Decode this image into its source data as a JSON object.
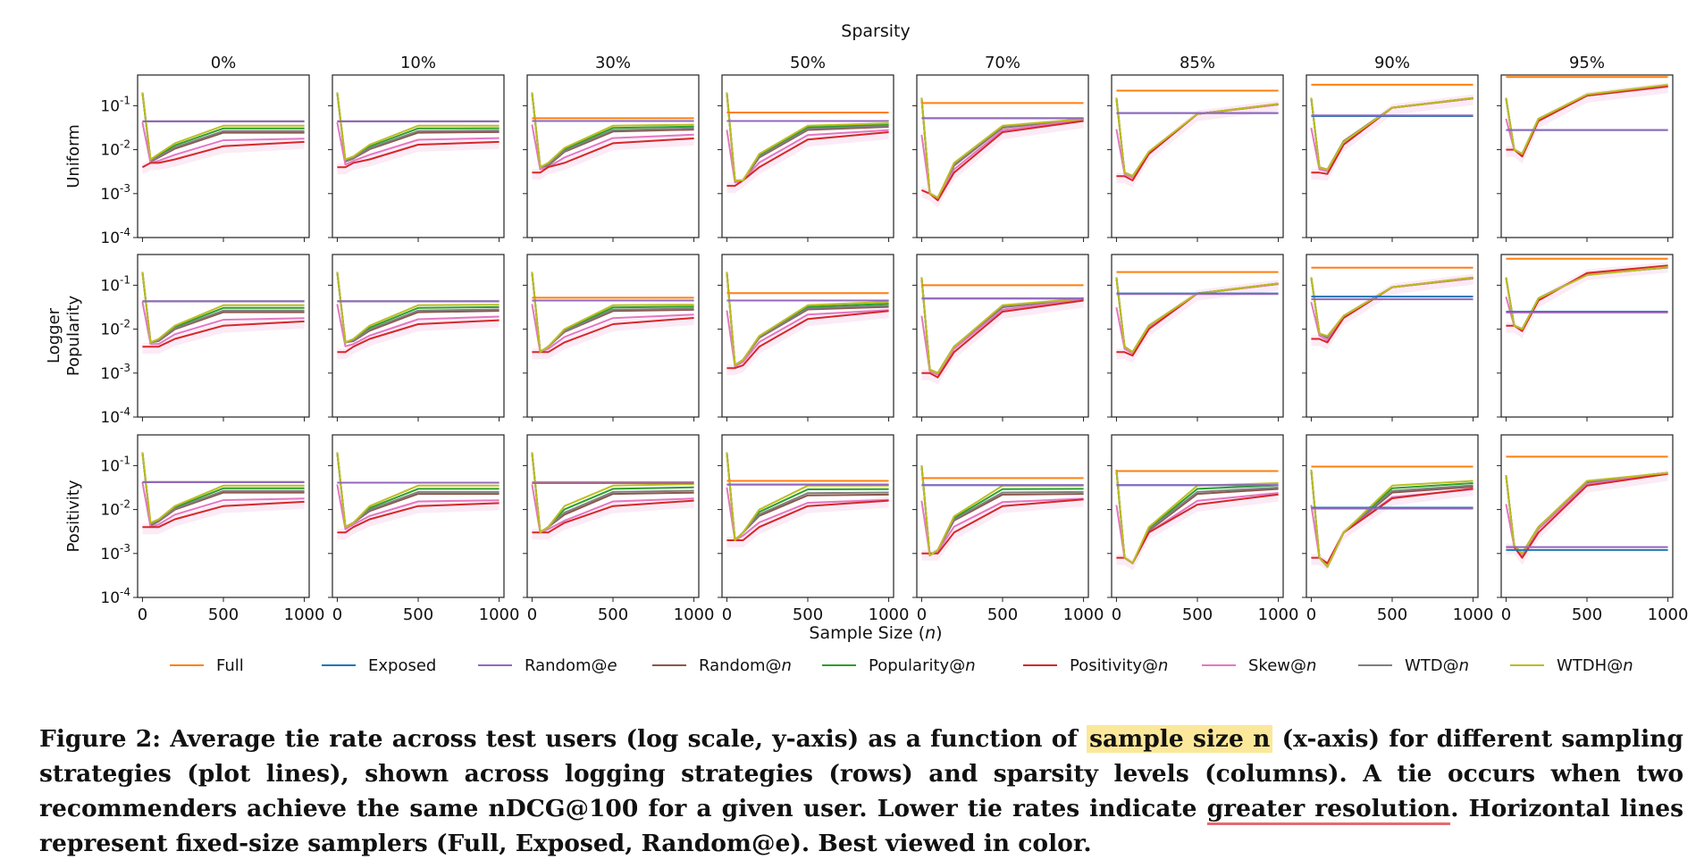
{
  "figure": {
    "suptitle": "Sparsity",
    "xlabel": "Sample Size (n)",
    "xlabel_prefix": "Sample Size (",
    "xlabel_var": "n",
    "xlabel_suffix": ")",
    "caption": {
      "label": "Figure 2:",
      "part1": "Average tie rate across test users (log scale, y-axis) as a function of",
      "highlight": "sample size n",
      "part2": "(x-axis) for different sampling strategies (plot lines), shown across logging strategies (rows) and sparsity levels (columns). A tie occurs when two recommenders achieve the same nDCG@100 for a given user. Lower tie rates indicate",
      "underline": "greater resolution",
      "part3": ". Horizontal lines represent fixed-size samplers (Full, Exposed, Random@e). Best viewed in color."
    }
  },
  "chart_data": {
    "type": "line",
    "yscale": "log",
    "ylim": [
      0.0001,
      0.5
    ],
    "xlim": [
      -30,
      1030
    ],
    "x": [
      0,
      50,
      100,
      200,
      500,
      1000
    ],
    "x_ticks": [
      "0",
      "500",
      "1000"
    ],
    "y_ticks": [
      "10^-1",
      "10^-2",
      "10^-3",
      "10^-4"
    ],
    "columns": [
      "0%",
      "10%",
      "30%",
      "50%",
      "70%",
      "85%",
      "90%",
      "95%"
    ],
    "rows": [
      {
        "label_lines": [
          "Uniform"
        ]
      },
      {
        "label_lines": [
          "Logger",
          "Popularity"
        ]
      },
      {
        "label_lines": [
          "Positivity"
        ]
      }
    ],
    "series": [
      {
        "name": "Full",
        "label": "Full",
        "italic": "",
        "color": "#ff7f0e"
      },
      {
        "name": "Exposed",
        "label": "Exposed",
        "italic": "",
        "color": "#1f77b4"
      },
      {
        "name": "Random@e",
        "label": "Random@",
        "italic": "e",
        "color": "#9467bd"
      },
      {
        "name": "Random@n",
        "label": "Random@",
        "italic": "n",
        "color": "#8c564b"
      },
      {
        "name": "Popularity@n",
        "label": "Popularity@",
        "italic": "n",
        "color": "#2ca02c"
      },
      {
        "name": "Positivity@n",
        "label": "Positivity@",
        "italic": "n",
        "color": "#d62728"
      },
      {
        "name": "Skew@n",
        "label": "Skew@",
        "italic": "n",
        "color": "#e377c2"
      },
      {
        "name": "WTD@n",
        "label": "WTD@",
        "italic": "n",
        "color": "#7f7f7f"
      },
      {
        "name": "WTDH@n",
        "label": "WTDH@",
        "italic": "n",
        "color": "#bcbd22"
      }
    ],
    "horizontal": [
      [
        [
          0.044,
          0.044,
          0.044
        ],
        [
          0.044,
          0.044,
          0.044
        ],
        [
          0.052,
          0.045,
          0.045
        ],
        [
          0.07,
          0.045,
          0.045
        ],
        [
          0.115,
          0.052,
          0.052
        ],
        [
          0.22,
          0.068,
          0.068
        ],
        [
          0.3,
          0.058,
          0.06
        ],
        [
          0.45,
          0.028,
          0.028
        ]
      ],
      [
        [
          0.043,
          0.043,
          0.043
        ],
        [
          0.043,
          0.043,
          0.043
        ],
        [
          0.052,
          0.045,
          0.045
        ],
        [
          0.066,
          0.045,
          0.045
        ],
        [
          0.1,
          0.05,
          0.05
        ],
        [
          0.2,
          0.065,
          0.063
        ],
        [
          0.25,
          0.055,
          0.048
        ],
        [
          0.4,
          0.025,
          0.024
        ]
      ],
      [
        [
          0.042,
          0.042,
          0.042
        ],
        [
          0.041,
          0.041,
          0.041
        ],
        [
          0.042,
          0.04,
          0.04
        ],
        [
          0.045,
          0.037,
          0.037
        ],
        [
          0.052,
          0.036,
          0.036
        ],
        [
          0.075,
          0.036,
          0.036
        ],
        [
          0.095,
          0.011,
          0.0105
        ],
        [
          0.16,
          0.0012,
          0.0014
        ]
      ]
    ],
    "curves": [
      [
        [
          [
            0.2,
            0.006,
            0.008,
            0.014,
            0.035,
            0.035
          ],
          [
            0.004,
            0.005,
            0.005,
            0.006,
            0.012,
            0.015
          ],
          [
            0.2,
            0.005,
            0.006,
            0.009,
            0.02,
            0.02
          ]
        ],
        [
          [
            0.2,
            0.006,
            0.007,
            0.013,
            0.035,
            0.035
          ],
          [
            0.004,
            0.004,
            0.005,
            0.006,
            0.013,
            0.015
          ],
          [
            0.2,
            0.005,
            0.006,
            0.009,
            0.02,
            0.021
          ]
        ],
        [
          [
            0.2,
            0.004,
            0.005,
            0.011,
            0.035,
            0.037
          ],
          [
            0.003,
            0.003,
            0.004,
            0.005,
            0.014,
            0.018
          ],
          [
            0.2,
            0.004,
            0.004,
            0.008,
            0.022,
            0.025
          ]
        ],
        [
          [
            0.2,
            0.002,
            0.002,
            0.008,
            0.035,
            0.04
          ],
          [
            0.0015,
            0.0015,
            0.002,
            0.004,
            0.017,
            0.025
          ],
          [
            0.2,
            0.002,
            0.002,
            0.006,
            0.025,
            0.03
          ]
        ],
        [
          [
            0.15,
            0.001,
            0.0008,
            0.005,
            0.035,
            0.05
          ],
          [
            0.0012,
            0.001,
            0.0007,
            0.003,
            0.025,
            0.045
          ],
          [
            0.15,
            0.001,
            0.0008,
            0.004,
            0.03,
            0.05
          ]
        ],
        [
          [
            0.15,
            0.003,
            0.0025,
            0.009,
            0.065,
            0.11
          ],
          [
            0.0025,
            0.0025,
            0.002,
            0.008,
            0.065,
            0.11
          ],
          [
            0.15,
            0.003,
            0.0025,
            0.008,
            0.065,
            0.105
          ]
        ],
        [
          [
            0.15,
            0.004,
            0.0035,
            0.015,
            0.09,
            0.15
          ],
          [
            0.003,
            0.003,
            0.0028,
            0.013,
            0.09,
            0.15
          ],
          [
            0.15,
            0.004,
            0.0035,
            0.016,
            0.09,
            0.145
          ]
        ],
        [
          [
            0.15,
            0.01,
            0.008,
            0.05,
            0.18,
            0.3
          ],
          [
            0.01,
            0.01,
            0.007,
            0.045,
            0.17,
            0.28
          ],
          [
            0.15,
            0.01,
            0.008,
            0.05,
            0.17,
            0.26
          ]
        ]
      ],
      [
        [
          [
            0.2,
            0.005,
            0.006,
            0.012,
            0.035,
            0.035
          ],
          [
            0.004,
            0.004,
            0.004,
            0.006,
            0.012,
            0.015
          ],
          [
            0.2,
            0.005,
            0.005,
            0.009,
            0.02,
            0.02
          ]
        ],
        [
          [
            0.2,
            0.005,
            0.006,
            0.012,
            0.035,
            0.036
          ],
          [
            0.003,
            0.003,
            0.004,
            0.006,
            0.013,
            0.016
          ],
          [
            0.2,
            0.005,
            0.005,
            0.008,
            0.02,
            0.022
          ]
        ],
        [
          [
            0.2,
            0.003,
            0.004,
            0.01,
            0.035,
            0.036
          ],
          [
            0.003,
            0.003,
            0.003,
            0.005,
            0.013,
            0.018
          ],
          [
            0.2,
            0.003,
            0.004,
            0.008,
            0.022,
            0.024
          ]
        ],
        [
          [
            0.2,
            0.0015,
            0.002,
            0.007,
            0.035,
            0.042
          ],
          [
            0.0013,
            0.0013,
            0.0015,
            0.004,
            0.017,
            0.026
          ],
          [
            0.2,
            0.0015,
            0.002,
            0.006,
            0.025,
            0.028
          ]
        ],
        [
          [
            0.15,
            0.0012,
            0.001,
            0.004,
            0.035,
            0.05
          ],
          [
            0.001,
            0.001,
            0.0008,
            0.003,
            0.025,
            0.045
          ],
          [
            0.15,
            0.0012,
            0.001,
            0.004,
            0.03,
            0.05
          ]
        ],
        [
          [
            0.15,
            0.004,
            0.003,
            0.012,
            0.065,
            0.11
          ],
          [
            0.003,
            0.003,
            0.0025,
            0.01,
            0.065,
            0.11
          ],
          [
            0.15,
            0.004,
            0.003,
            0.012,
            0.065,
            0.105
          ]
        ],
        [
          [
            0.15,
            0.008,
            0.007,
            0.02,
            0.09,
            0.15
          ],
          [
            0.006,
            0.006,
            0.005,
            0.018,
            0.09,
            0.15
          ],
          [
            0.15,
            0.008,
            0.006,
            0.02,
            0.09,
            0.14
          ]
        ],
        [
          [
            0.15,
            0.012,
            0.01,
            0.05,
            0.17,
            0.26
          ],
          [
            0.012,
            0.012,
            0.009,
            0.045,
            0.19,
            0.28
          ],
          [
            0.15,
            0.012,
            0.01,
            0.05,
            0.18,
            0.25
          ]
        ]
      ],
      [
        [
          [
            0.2,
            0.005,
            0.006,
            0.012,
            0.035,
            0.035
          ],
          [
            0.004,
            0.004,
            0.004,
            0.006,
            0.012,
            0.015
          ],
          [
            0.2,
            0.004,
            0.005,
            0.009,
            0.02,
            0.02
          ]
        ],
        [
          [
            0.2,
            0.004,
            0.005,
            0.012,
            0.035,
            0.035
          ],
          [
            0.003,
            0.003,
            0.004,
            0.006,
            0.012,
            0.014
          ],
          [
            0.2,
            0.004,
            0.005,
            0.008,
            0.018,
            0.018
          ]
        ],
        [
          [
            0.2,
            0.003,
            0.004,
            0.012,
            0.035,
            0.038
          ],
          [
            0.003,
            0.003,
            0.003,
            0.005,
            0.012,
            0.016
          ],
          [
            0.2,
            0.003,
            0.004,
            0.006,
            0.018,
            0.019
          ]
        ],
        [
          [
            0.2,
            0.002,
            0.003,
            0.01,
            0.035,
            0.035
          ],
          [
            0.002,
            0.002,
            0.002,
            0.004,
            0.012,
            0.016
          ],
          [
            0.2,
            0.002,
            0.003,
            0.006,
            0.016,
            0.017
          ]
        ],
        [
          [
            0.1,
            0.0009,
            0.0012,
            0.007,
            0.035,
            0.035
          ],
          [
            0.001,
            0.001,
            0.001,
            0.003,
            0.012,
            0.017
          ],
          [
            0.1,
            0.0009,
            0.0012,
            0.005,
            0.017,
            0.018
          ]
        ],
        [
          [
            0.08,
            0.0008,
            0.0006,
            0.004,
            0.035,
            0.04
          ],
          [
            0.0008,
            0.0008,
            0.0006,
            0.003,
            0.013,
            0.022
          ],
          [
            0.08,
            0.0008,
            0.0006,
            0.003,
            0.018,
            0.025
          ]
        ],
        [
          [
            0.08,
            0.0008,
            0.0005,
            0.003,
            0.035,
            0.045
          ],
          [
            0.0008,
            0.0008,
            0.0006,
            0.003,
            0.018,
            0.03
          ],
          [
            0.08,
            0.0008,
            0.0005,
            0.003,
            0.02,
            0.028
          ]
        ],
        [
          [
            0.06,
            0.0015,
            0.001,
            0.004,
            0.045,
            0.068
          ],
          [
            0.0014,
            0.0014,
            0.0008,
            0.003,
            0.035,
            0.065
          ],
          [
            0.06,
            0.0015,
            0.001,
            0.004,
            0.04,
            0.068
          ]
        ]
      ]
    ]
  }
}
